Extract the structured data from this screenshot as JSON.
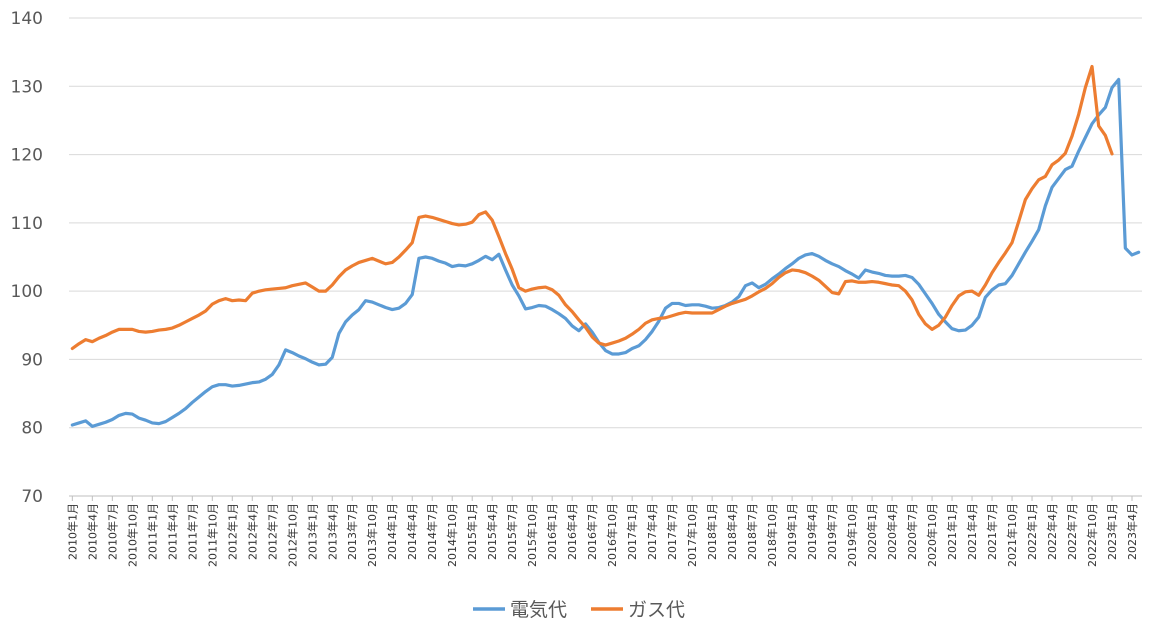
{
  "chart_data": {
    "type": "line",
    "title": "",
    "xlabel": "",
    "ylabel": "",
    "ylim": [
      70,
      140
    ],
    "yticks": [
      70,
      80,
      90,
      100,
      110,
      120,
      130,
      140
    ],
    "grid": "horizontal",
    "legend_position": "bottom",
    "x_start": "2010年1月",
    "x_end": "2023年4月",
    "x_ticks": [
      "2010年1月",
      "2010年4月",
      "2010年7月",
      "2010年10月",
      "2011年1月",
      "2011年4月",
      "2011年7月",
      "2011年10月",
      "2012年1月",
      "2012年4月",
      "2012年7月",
      "2012年10月",
      "2013年1月",
      "2013年4月",
      "2013年7月",
      "2013年10月",
      "2014年1月",
      "2014年4月",
      "2014年7月",
      "2014年10月",
      "2015年1月",
      "2015年4月",
      "2015年7月",
      "2015年10月",
      "2016年1月",
      "2016年4月",
      "2016年7月",
      "2016年10月",
      "2017年1月",
      "2017年4月",
      "2017年7月",
      "2017年10月",
      "2018年1月",
      "2018年4月",
      "2018年7月",
      "2018年10月",
      "2019年1月",
      "2019年4月",
      "2019年7月",
      "2019年10月",
      "2020年1月",
      "2020年4月",
      "2020年7月",
      "2020年10月",
      "2021年1月",
      "2021年4月",
      "2021年7月",
      "2021年10月",
      "2022年1月",
      "2022年4月",
      "2022年7月",
      "2022年10月",
      "2023年1月",
      "2023年4月"
    ],
    "series": [
      {
        "name": "電気代",
        "color": "#5B9BD5",
        "values": [
          80.4,
          80.7,
          81.0,
          80.2,
          80.5,
          80.8,
          81.2,
          81.8,
          82.1,
          82.0,
          81.4,
          81.1,
          80.7,
          80.6,
          80.9,
          81.5,
          82.1,
          82.8,
          83.7,
          84.5,
          85.3,
          86.0,
          86.3,
          86.3,
          86.1,
          86.2,
          86.4,
          86.6,
          86.7,
          87.1,
          87.8,
          89.2,
          91.4,
          91.0,
          90.5,
          90.1,
          89.6,
          89.2,
          89.3,
          90.3,
          93.8,
          95.5,
          96.5,
          97.3,
          98.6,
          98.4,
          98.0,
          97.6,
          97.3,
          97.5,
          98.2,
          99.5,
          104.8,
          105.0,
          104.8,
          104.4,
          104.1,
          103.6,
          103.8,
          103.7,
          104.0,
          104.5,
          105.1,
          104.6,
          105.4,
          103.1,
          100.9,
          99.3,
          97.4,
          97.6,
          97.9,
          97.8,
          97.3,
          96.7,
          96.0,
          94.9,
          94.2,
          95.2,
          94.0,
          92.5,
          91.3,
          90.8,
          90.8,
          91.0,
          91.6,
          92.0,
          92.9,
          94.1,
          95.6,
          97.5,
          98.2,
          98.2,
          97.9,
          98.0,
          98.0,
          97.8,
          97.5,
          97.6,
          97.9,
          98.4,
          99.2,
          100.8,
          101.2,
          100.5,
          101.0,
          101.8,
          102.5,
          103.3,
          104.0,
          104.8,
          105.3,
          105.5,
          105.1,
          104.5,
          104.0,
          103.6,
          103.0,
          102.5,
          101.9,
          103.1,
          102.8,
          102.6,
          102.3,
          102.2,
          102.2,
          102.3,
          102.0,
          101.0,
          99.6,
          98.2,
          96.6,
          95.5,
          94.5,
          94.2,
          94.3,
          95.0,
          96.2,
          99.1,
          100.2,
          100.9,
          101.1,
          102.3,
          104.0,
          105.7,
          107.3,
          109.0,
          112.5,
          115.2,
          116.5,
          117.8,
          118.3,
          120.5,
          122.5,
          124.5,
          125.8,
          126.9,
          129.8,
          131.0,
          106.3,
          105.3,
          105.7
        ]
      },
      {
        "name": "ガス代",
        "color": "#ED7D31",
        "values": [
          91.6,
          92.3,
          92.9,
          92.6,
          93.1,
          93.5,
          94.0,
          94.4,
          94.4,
          94.4,
          94.1,
          94.0,
          94.1,
          94.3,
          94.4,
          94.6,
          95.0,
          95.5,
          96.0,
          96.5,
          97.1,
          98.1,
          98.6,
          98.9,
          98.6,
          98.7,
          98.6,
          99.7,
          100.0,
          100.2,
          100.3,
          100.4,
          100.5,
          100.8,
          101.0,
          101.2,
          100.6,
          100.0,
          100.0,
          100.9,
          102.1,
          103.1,
          103.7,
          104.2,
          104.5,
          104.8,
          104.4,
          104.0,
          104.2,
          105.0,
          106.0,
          107.1,
          110.8,
          111.0,
          110.8,
          110.5,
          110.2,
          109.9,
          109.7,
          109.8,
          110.1,
          111.2,
          111.6,
          110.4,
          108.0,
          105.5,
          103.2,
          100.5,
          100.0,
          100.3,
          100.5,
          100.6,
          100.2,
          99.4,
          98.0,
          97.0,
          95.8,
          94.7,
          93.3,
          92.4,
          92.1,
          92.4,
          92.7,
          93.1,
          93.7,
          94.4,
          95.3,
          95.8,
          96.0,
          96.1,
          96.4,
          96.7,
          96.9,
          96.8,
          96.8,
          96.8,
          96.8,
          97.3,
          97.8,
          98.2,
          98.5,
          98.8,
          99.3,
          99.9,
          100.4,
          101.1,
          102.0,
          102.7,
          103.1,
          103.0,
          102.7,
          102.2,
          101.6,
          100.7,
          99.8,
          99.6,
          101.4,
          101.5,
          101.3,
          101.3,
          101.4,
          101.3,
          101.1,
          100.9,
          100.8,
          100.0,
          98.7,
          96.6,
          95.2,
          94.4,
          95.0,
          96.2,
          97.9,
          99.3,
          99.9,
          100.0,
          99.4,
          100.9,
          102.7,
          104.2,
          105.6,
          107.1,
          110.2,
          113.4,
          115.0,
          116.3,
          116.8,
          118.5,
          119.2,
          120.2,
          122.7,
          125.9,
          129.8,
          132.9,
          124.2,
          122.8,
          120.1
        ]
      }
    ]
  }
}
